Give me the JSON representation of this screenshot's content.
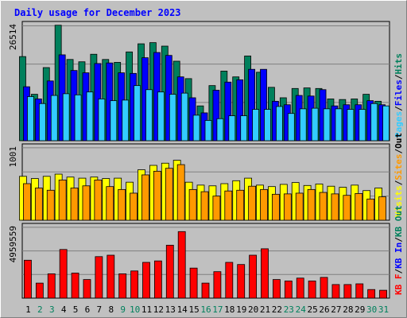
{
  "chart_data": [
    {
      "type": "bar",
      "title": "Daily usage for December 2023",
      "x": [
        1,
        2,
        3,
        4,
        5,
        6,
        7,
        8,
        9,
        10,
        11,
        12,
        13,
        14,
        15,
        16,
        17,
        18,
        19,
        20,
        21,
        22,
        23,
        24,
        25,
        26,
        27,
        28,
        29,
        30,
        31
      ],
      "weekend_days": [
        2,
        3,
        9,
        10,
        16,
        17,
        23,
        24,
        30,
        31
      ],
      "ymax_label": "26514",
      "legend": [
        {
          "text": "Pages",
          "color": "#33ccff"
        },
        {
          "text": "/",
          "color": "#000000"
        },
        {
          "text": "Files",
          "color": "#0000ff"
        },
        {
          "text": "/",
          "color": "#000000"
        },
        {
          "text": "Hits",
          "color": "#00805c"
        }
      ],
      "series": [
        {
          "name": "Hits",
          "color": "#00805c",
          "values": [
            0.725,
            0.4,
            0.63,
            0.995,
            0.7,
            0.68,
            0.745,
            0.7,
            0.675,
            0.765,
            0.835,
            0.845,
            0.815,
            0.685,
            0.535,
            0.3,
            0.475,
            0.6,
            0.55,
            0.73,
            0.59,
            0.46,
            0.37,
            0.45,
            0.455,
            0.45,
            0.36,
            0.355,
            0.36,
            0.4,
            0.34
          ]
        },
        {
          "name": "Files",
          "color": "#0000ff",
          "values": [
            0.465,
            0.36,
            0.515,
            0.74,
            0.605,
            0.585,
            0.665,
            0.67,
            0.585,
            0.58,
            0.715,
            0.76,
            0.735,
            0.55,
            0.37,
            0.24,
            0.435,
            0.505,
            0.525,
            0.615,
            0.615,
            0.34,
            0.31,
            0.39,
            0.385,
            0.44,
            0.3,
            0.31,
            0.31,
            0.345,
            0.31
          ]
        },
        {
          "name": "Pages",
          "color": "#33ccff",
          "values": [
            0.38,
            0.32,
            0.39,
            0.405,
            0.395,
            0.42,
            0.36,
            0.345,
            0.35,
            0.475,
            0.44,
            0.42,
            0.4,
            0.41,
            0.22,
            0.175,
            0.19,
            0.215,
            0.215,
            0.27,
            0.27,
            0.295,
            0.235,
            0.275,
            0.28,
            0.275,
            0.275,
            0.27,
            0.27,
            0.32,
            0.3
          ]
        }
      ]
    },
    {
      "type": "bar",
      "ymax_label": "1001",
      "legend": [
        {
          "text": "Visits",
          "color": "#ffff00"
        },
        {
          "text": "/",
          "color": "#000000"
        },
        {
          "text": "Sites",
          "color": "#ff9900"
        },
        {
          "text": "/",
          "color": "#000000"
        },
        {
          "text": "Out",
          "color": "#000000"
        }
      ],
      "series": [
        {
          "name": "Visits",
          "color": "#ffff00",
          "values": [
            0.6,
            0.57,
            0.6,
            0.63,
            0.59,
            0.575,
            0.59,
            0.57,
            0.575,
            0.52,
            0.69,
            0.75,
            0.78,
            0.82,
            0.52,
            0.48,
            0.47,
            0.5,
            0.54,
            0.575,
            0.48,
            0.46,
            0.49,
            0.515,
            0.475,
            0.495,
            0.465,
            0.45,
            0.48,
            0.405,
            0.44
          ]
        },
        {
          "name": "Sites",
          "color": "#ff9900",
          "values": [
            0.5,
            0.44,
            0.41,
            0.55,
            0.44,
            0.47,
            0.55,
            0.46,
            0.42,
            0.37,
            0.62,
            0.67,
            0.71,
            0.76,
            0.42,
            0.39,
            0.33,
            0.4,
            0.41,
            0.465,
            0.42,
            0.355,
            0.36,
            0.37,
            0.42,
            0.38,
            0.36,
            0.34,
            0.365,
            0.29,
            0.32
          ]
        }
      ]
    },
    {
      "type": "bar",
      "ymax_label": "4959559",
      "legend": [
        {
          "text": "KB F",
          "color": "#ff0000"
        },
        {
          "text": "/",
          "color": "#000000"
        },
        {
          "text": "KB In",
          "color": "#0000ff"
        },
        {
          "text": "/",
          "color": "#000000"
        },
        {
          "text": "KB Out",
          "color": "#00805c"
        }
      ],
      "series": [
        {
          "name": "KB F",
          "color": "#ff0000",
          "values": [
            0.53,
            0.21,
            0.34,
            0.68,
            0.35,
            0.26,
            0.58,
            0.6,
            0.34,
            0.38,
            0.5,
            0.52,
            0.74,
            0.93,
            0.42,
            0.21,
            0.37,
            0.5,
            0.47,
            0.6,
            0.69,
            0.26,
            0.24,
            0.28,
            0.24,
            0.29,
            0.19,
            0.19,
            0.2,
            0.12,
            0.11
          ]
        }
      ]
    }
  ]
}
